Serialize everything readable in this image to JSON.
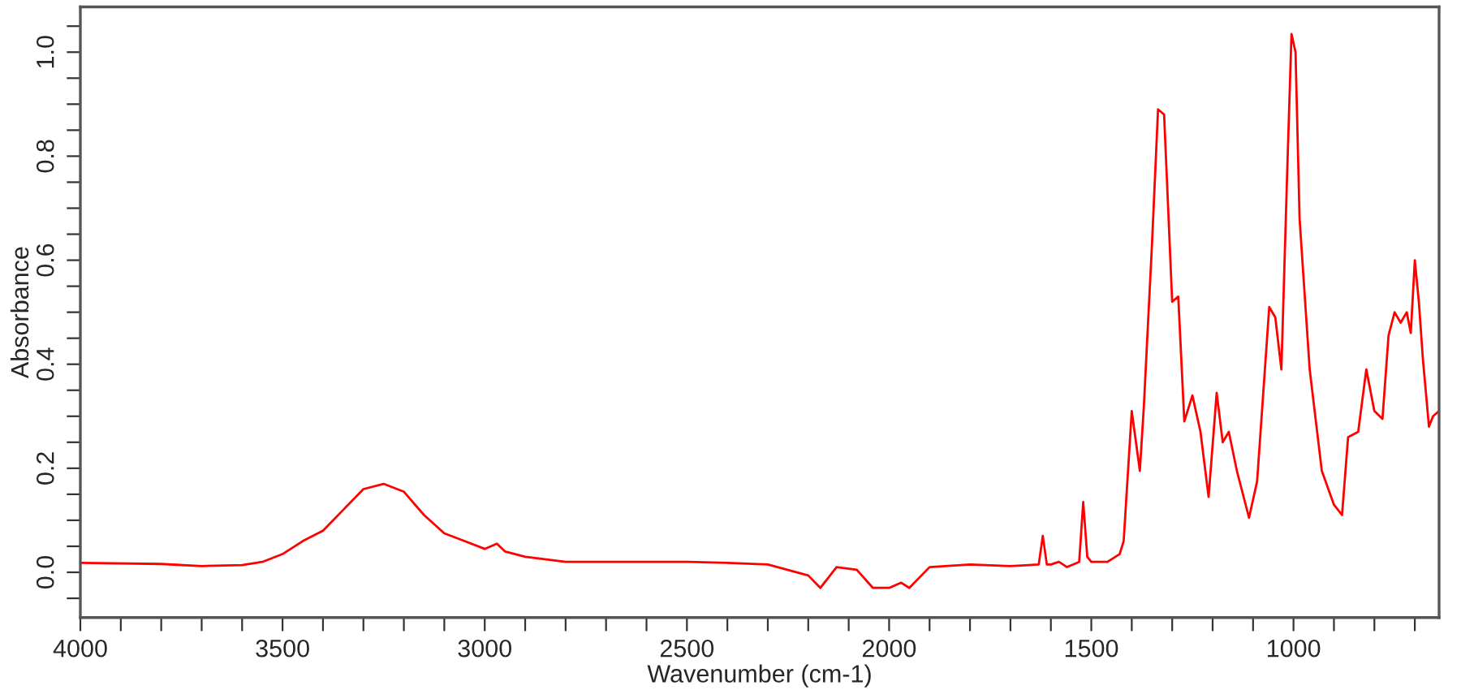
{
  "chart_data": {
    "type": "line",
    "xlabel": "Wavenumber (cm-1)",
    "ylabel": "Absorbance",
    "xlim": [
      4000,
      640
    ],
    "ylim": [
      -0.087,
      1.087
    ],
    "xticks": [
      {
        "value": 4000,
        "label": "4000"
      },
      {
        "value": 3900,
        "label": null
      },
      {
        "value": 3800,
        "label": null
      },
      {
        "value": 3700,
        "label": null
      },
      {
        "value": 3600,
        "label": null
      },
      {
        "value": 3500,
        "label": "3500"
      },
      {
        "value": 3400,
        "label": null
      },
      {
        "value": 3300,
        "label": null
      },
      {
        "value": 3200,
        "label": null
      },
      {
        "value": 3100,
        "label": null
      },
      {
        "value": 3000,
        "label": "3000"
      },
      {
        "value": 2900,
        "label": null
      },
      {
        "value": 2800,
        "label": null
      },
      {
        "value": 2700,
        "label": null
      },
      {
        "value": 2600,
        "label": null
      },
      {
        "value": 2500,
        "label": "2500"
      },
      {
        "value": 2400,
        "label": null
      },
      {
        "value": 2300,
        "label": null
      },
      {
        "value": 2200,
        "label": null
      },
      {
        "value": 2100,
        "label": null
      },
      {
        "value": 2000,
        "label": "2000"
      },
      {
        "value": 1900,
        "label": null
      },
      {
        "value": 1800,
        "label": null
      },
      {
        "value": 1700,
        "label": null
      },
      {
        "value": 1600,
        "label": null
      },
      {
        "value": 1500,
        "label": "1500"
      },
      {
        "value": 1400,
        "label": null
      },
      {
        "value": 1300,
        "label": null
      },
      {
        "value": 1200,
        "label": null
      },
      {
        "value": 1100,
        "label": null
      },
      {
        "value": 1000,
        "label": "1000"
      },
      {
        "value": 900,
        "label": null
      },
      {
        "value": 800,
        "label": null
      },
      {
        "value": 700,
        "label": null
      }
    ],
    "yticks": [
      {
        "value": -0.05,
        "label": null
      },
      {
        "value": 0.0,
        "label": "0.0"
      },
      {
        "value": 0.05,
        "label": null
      },
      {
        "value": 0.1,
        "label": null
      },
      {
        "value": 0.15,
        "label": null
      },
      {
        "value": 0.2,
        "label": "0.2"
      },
      {
        "value": 0.25,
        "label": null
      },
      {
        "value": 0.3,
        "label": null
      },
      {
        "value": 0.35,
        "label": null
      },
      {
        "value": 0.4,
        "label": "0.4"
      },
      {
        "value": 0.45,
        "label": null
      },
      {
        "value": 0.5,
        "label": null
      },
      {
        "value": 0.55,
        "label": null
      },
      {
        "value": 0.6,
        "label": "0.6"
      },
      {
        "value": 0.65,
        "label": null
      },
      {
        "value": 0.7,
        "label": null
      },
      {
        "value": 0.75,
        "label": null
      },
      {
        "value": 0.8,
        "label": "0.8"
      },
      {
        "value": 0.85,
        "label": null
      },
      {
        "value": 0.9,
        "label": null
      },
      {
        "value": 0.95,
        "label": null
      },
      {
        "value": 1.0,
        "label": "1.0"
      },
      {
        "value": 1.05,
        "label": null
      }
    ],
    "grid": false,
    "legend": false,
    "marker": "none",
    "line_style": "solid",
    "series": [
      {
        "color": "#ff0000",
        "x": [
          4000,
          3800,
          3700,
          3600,
          3550,
          3500,
          3450,
          3400,
          3350,
          3300,
          3250,
          3200,
          3150,
          3100,
          3050,
          3000,
          2970,
          2950,
          2900,
          2800,
          2500,
          2400,
          2300,
          2200,
          2170,
          2130,
          2080,
          2040,
          2000,
          1970,
          1950,
          1900,
          1800,
          1700,
          1630,
          1620,
          1610,
          1600,
          1580,
          1560,
          1530,
          1520,
          1510,
          1500,
          1460,
          1430,
          1420,
          1400,
          1380,
          1370,
          1350,
          1335,
          1320,
          1300,
          1285,
          1270,
          1250,
          1230,
          1210,
          1190,
          1175,
          1160,
          1140,
          1110,
          1090,
          1060,
          1045,
          1030,
          1015,
          1005,
          995,
          985,
          960,
          930,
          900,
          880,
          865,
          840,
          820,
          800,
          780,
          765,
          750,
          735,
          720,
          710,
          700,
          690,
          680,
          665,
          655,
          640
        ],
        "values": [
          0.018,
          0.016,
          0.012,
          0.014,
          0.02,
          0.035,
          0.06,
          0.08,
          0.12,
          0.16,
          0.17,
          0.155,
          0.11,
          0.075,
          0.06,
          0.045,
          0.055,
          0.04,
          0.03,
          0.02,
          0.02,
          0.018,
          0.015,
          -0.006,
          -0.03,
          0.01,
          0.005,
          -0.03,
          -0.03,
          -0.02,
          -0.03,
          0.01,
          0.015,
          0.012,
          0.015,
          0.07,
          0.015,
          0.015,
          0.02,
          0.01,
          0.02,
          0.135,
          0.03,
          0.02,
          0.02,
          0.035,
          0.06,
          0.31,
          0.195,
          0.32,
          0.63,
          0.89,
          0.88,
          0.52,
          0.53,
          0.29,
          0.34,
          0.27,
          0.145,
          0.345,
          0.25,
          0.27,
          0.195,
          0.105,
          0.175,
          0.51,
          0.49,
          0.39,
          0.785,
          1.035,
          1.0,
          0.68,
          0.39,
          0.195,
          0.13,
          0.11,
          0.26,
          0.27,
          0.39,
          0.31,
          0.295,
          0.455,
          0.5,
          0.48,
          0.5,
          0.46,
          0.6,
          0.52,
          0.41,
          0.28,
          0.3,
          0.31
        ]
      }
    ]
  }
}
